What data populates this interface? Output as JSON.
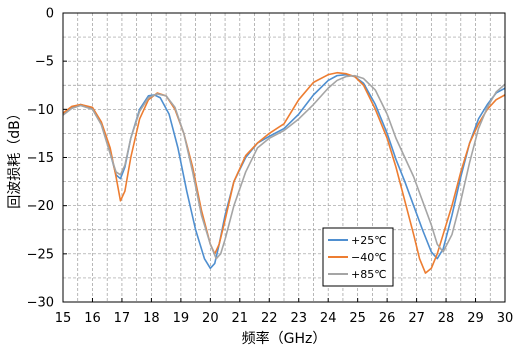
{
  "chart_data": {
    "type": "line",
    "title": "",
    "xlabel": "频率（GHz）",
    "ylabel": "回波损耗（dB）",
    "xlim": [
      15,
      30
    ],
    "ylim": [
      -30,
      0
    ],
    "xticks": [
      15,
      16,
      17,
      18,
      19,
      20,
      21,
      22,
      23,
      24,
      25,
      26,
      27,
      28,
      29,
      30
    ],
    "yticks": [
      0,
      -5,
      -10,
      -15,
      -20,
      -25,
      -30
    ],
    "grid": true,
    "legend": "bottom-right",
    "series": [
      {
        "name": "+25℃",
        "color": "#4f8fd0",
        "x": [
          15.0,
          15.3,
          15.6,
          16.0,
          16.3,
          16.6,
          16.8,
          16.95,
          17.1,
          17.3,
          17.6,
          17.9,
          18.1,
          18.3,
          18.6,
          18.9,
          19.2,
          19.5,
          19.8,
          20.0,
          20.15,
          20.3,
          20.5,
          20.8,
          21.2,
          21.6,
          22.0,
          22.5,
          23.0,
          23.5,
          24.0,
          24.3,
          24.6,
          24.9,
          25.2,
          25.6,
          26.0,
          26.3,
          26.6,
          26.9,
          27.2,
          27.5,
          27.7,
          27.9,
          28.2,
          28.5,
          28.8,
          29.1,
          29.4,
          29.7,
          30.0
        ],
        "y": [
          -10.5,
          -9.8,
          -9.5,
          -9.9,
          -11.5,
          -14.5,
          -16.8,
          -17.2,
          -16.0,
          -13.0,
          -10.0,
          -8.6,
          -8.5,
          -8.8,
          -10.5,
          -14.0,
          -18.5,
          -22.5,
          -25.5,
          -26.5,
          -26.0,
          -24.0,
          -21.0,
          -17.5,
          -15.0,
          -13.5,
          -12.8,
          -12.0,
          -10.5,
          -8.5,
          -7.0,
          -6.5,
          -6.4,
          -6.6,
          -7.3,
          -9.5,
          -12.5,
          -15.2,
          -17.5,
          -20.0,
          -22.5,
          -24.8,
          -25.5,
          -24.5,
          -21.0,
          -17.0,
          -13.5,
          -11.0,
          -9.5,
          -8.3,
          -7.8
        ]
      },
      {
        "name": "−40℃",
        "color": "#ed7d31",
        "x": [
          15.0,
          15.3,
          15.6,
          16.0,
          16.3,
          16.6,
          16.8,
          16.95,
          17.1,
          17.3,
          17.6,
          17.9,
          18.2,
          18.5,
          18.8,
          19.1,
          19.4,
          19.7,
          20.0,
          20.15,
          20.3,
          20.5,
          20.8,
          21.2,
          21.6,
          22.0,
          22.5,
          23.0,
          23.5,
          24.0,
          24.3,
          24.6,
          24.9,
          25.2,
          25.6,
          26.0,
          26.3,
          26.6,
          26.9,
          27.1,
          27.3,
          27.5,
          27.7,
          27.9,
          28.2,
          28.5,
          28.8,
          29.1,
          29.4,
          29.7,
          30.0
        ],
        "y": [
          -10.4,
          -9.7,
          -9.5,
          -9.8,
          -11.3,
          -14.0,
          -17.0,
          -19.5,
          -18.5,
          -15.0,
          -11.0,
          -9.0,
          -8.3,
          -8.6,
          -10.0,
          -12.5,
          -16.0,
          -20.5,
          -24.0,
          -25.0,
          -24.0,
          -21.5,
          -17.5,
          -14.8,
          -13.5,
          -12.5,
          -11.5,
          -9.0,
          -7.2,
          -6.4,
          -6.2,
          -6.3,
          -6.6,
          -7.5,
          -10.0,
          -13.0,
          -16.0,
          -19.5,
          -23.0,
          -25.5,
          -27.0,
          -26.5,
          -25.0,
          -23.0,
          -20.0,
          -16.5,
          -13.5,
          -11.5,
          -10.0,
          -9.0,
          -8.5
        ]
      },
      {
        "name": "+85℃",
        "color": "#a5a5a5",
        "x": [
          15.0,
          15.3,
          15.6,
          16.0,
          16.3,
          16.6,
          16.8,
          16.95,
          17.1,
          17.3,
          17.6,
          17.9,
          18.2,
          18.5,
          18.8,
          19.1,
          19.4,
          19.7,
          20.0,
          20.2,
          20.35,
          20.5,
          20.8,
          21.2,
          21.6,
          22.0,
          22.5,
          23.0,
          23.5,
          24.0,
          24.3,
          24.6,
          24.9,
          25.2,
          25.6,
          26.0,
          26.3,
          26.6,
          26.9,
          27.2,
          27.5,
          27.7,
          27.9,
          28.2,
          28.5,
          28.8,
          29.1,
          29.4,
          29.7,
          30.0
        ],
        "y": [
          -10.6,
          -9.9,
          -9.6,
          -10.0,
          -11.6,
          -14.6,
          -16.5,
          -16.8,
          -15.8,
          -13.0,
          -10.2,
          -8.8,
          -8.4,
          -8.6,
          -9.8,
          -12.5,
          -16.5,
          -21.0,
          -24.0,
          -25.5,
          -25.0,
          -23.5,
          -20.0,
          -16.5,
          -14.0,
          -13.0,
          -12.2,
          -11.0,
          -9.5,
          -7.8,
          -7.0,
          -6.6,
          -6.5,
          -6.8,
          -8.0,
          -10.5,
          -13.0,
          -15.0,
          -17.0,
          -19.5,
          -22.0,
          -24.0,
          -24.8,
          -23.0,
          -19.5,
          -15.5,
          -12.0,
          -9.8,
          -8.2,
          -7.4
        ]
      }
    ]
  }
}
